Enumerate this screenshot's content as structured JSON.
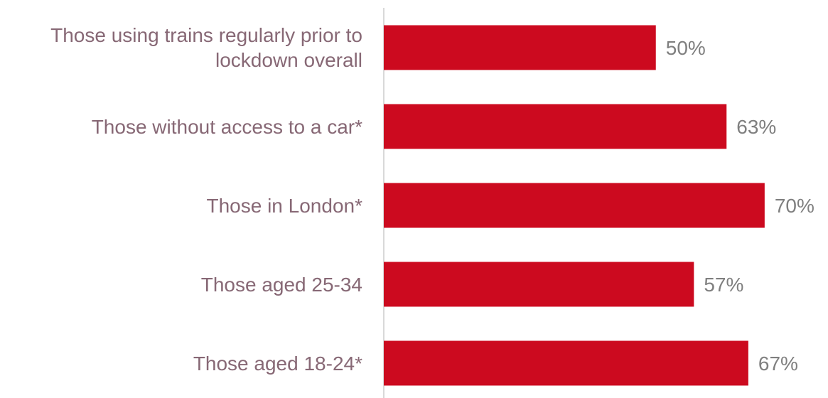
{
  "chart_data": {
    "type": "bar",
    "orientation": "horizontal",
    "categories": [
      "Those using trains regularly prior to lockdown overall",
      "Those without access to a car*",
      "Those in London*",
      "Those aged 25-34",
      "Those aged 18-24*"
    ],
    "category_lines": [
      [
        "Those using trains regularly prior to",
        "lockdown overall"
      ],
      [
        "Those without access to a car*"
      ],
      [
        "Those in London*"
      ],
      [
        "Those aged 25-34"
      ],
      [
        "Those aged 18-24*"
      ]
    ],
    "values": [
      50,
      63,
      70,
      57,
      67
    ],
    "value_labels": [
      "50%",
      "63%",
      "70%",
      "57%",
      "67%"
    ],
    "xlim": [
      0,
      100
    ],
    "grid": false,
    "legend": "none",
    "colors": {
      "bar": "#CC0A1F",
      "category_text": "#876875",
      "value_text": "#7F7F7F",
      "axis": "#D9D9D9"
    }
  }
}
